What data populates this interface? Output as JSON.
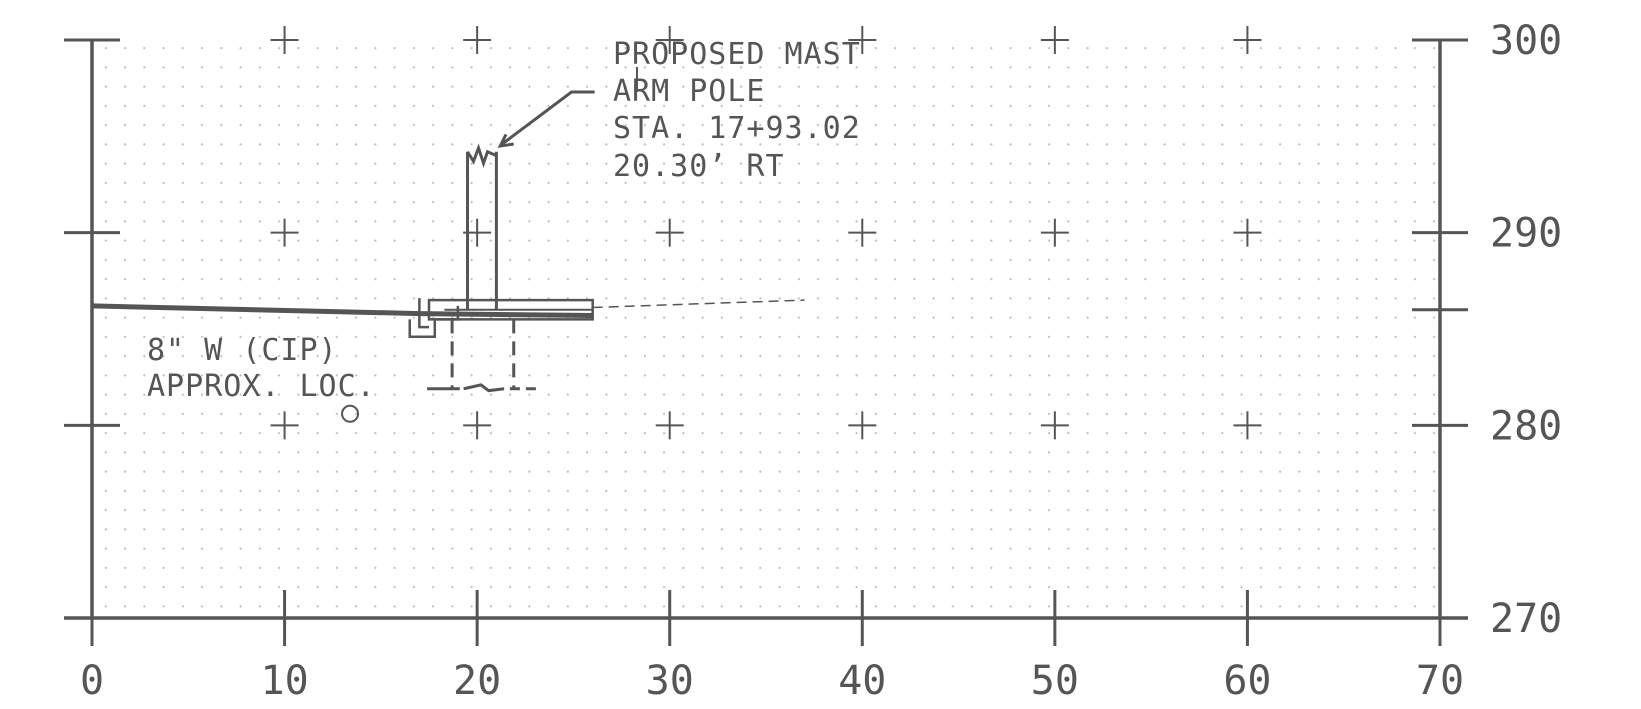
{
  "drawing": {
    "x_axis": {
      "min": 0,
      "max": 70,
      "step": 10,
      "labels": [
        "0",
        "10",
        "20",
        "30",
        "40",
        "50",
        "60",
        "70"
      ]
    },
    "y_axis": {
      "min": 270,
      "max": 300,
      "step": 10,
      "labels": [
        "270",
        "280",
        "290",
        "300"
      ]
    },
    "grid": true,
    "ground_profile": {
      "points": [
        [
          0,
          286.2
        ],
        [
          17,
          285.8
        ],
        [
          26,
          285.7
        ]
      ],
      "dashed_continuation_to": [
        37,
        286.5
      ]
    },
    "pole": {
      "x_left": 19.5,
      "x_right": 21,
      "base_elev": 286,
      "top_elev": 294.2
    },
    "foundation": {
      "x_left": 18.7,
      "x_right": 21.9,
      "bottom_elev": 281.9
    },
    "utility_marker": {
      "x": 13.4,
      "elev": 280.6
    },
    "callouts": {
      "pole_note": [
        "PROPOSED MAST",
        "ARM POLE",
        "STA. 17+93.02",
        "20.30’ RT"
      ],
      "water_note": [
        "8\" W (CIP)",
        "APPROX. LOC."
      ]
    },
    "colors": {
      "line": "#555555",
      "dot": "#bbbbbb",
      "background": "#ffffff"
    }
  }
}
